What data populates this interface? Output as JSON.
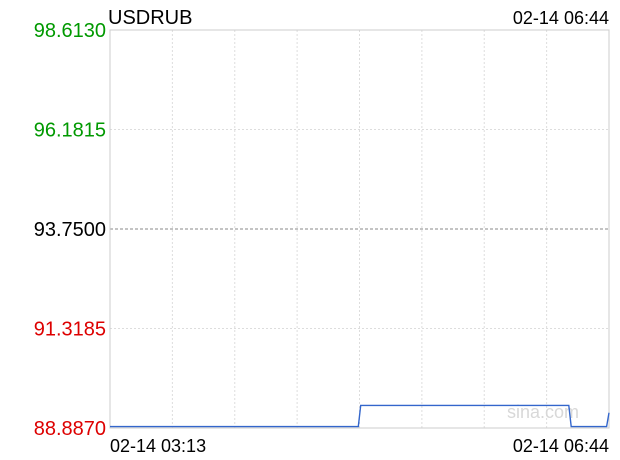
{
  "chart_data": {
    "type": "line",
    "title": "USDRUB",
    "timestamp": "02-14 06:44",
    "watermark": "sina.com",
    "x_start_label": "02-14 03:13",
    "x_end_label": "02-14 06:44",
    "ylim": [
      88.887,
      98.613
    ],
    "y_ticks": [
      {
        "label": "98.6130",
        "value": 98.613,
        "color": "#009900"
      },
      {
        "label": "96.1815",
        "value": 96.1815,
        "color": "#009900"
      },
      {
        "label": "93.7500",
        "value": 93.75,
        "color": "#000000"
      },
      {
        "label": "91.3185",
        "value": 91.3185,
        "color": "#dd0000"
      },
      {
        "label": "88.8870",
        "value": 88.887,
        "color": "#dd0000"
      }
    ],
    "reference_value": 93.75,
    "x_minutes_total": 211,
    "series": [
      {
        "color": "#3366cc",
        "points": [
          [
            0,
            88.92
          ],
          [
            105,
            88.92
          ],
          [
            106,
            89.44
          ],
          [
            194,
            89.44
          ],
          [
            195,
            88.92
          ],
          [
            210,
            88.92
          ],
          [
            211,
            89.26
          ]
        ]
      }
    ]
  }
}
